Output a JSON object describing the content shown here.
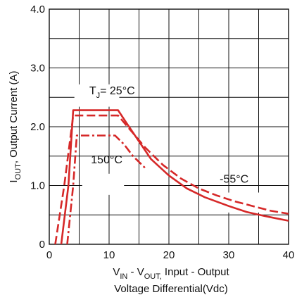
{
  "chart_data": {
    "type": "line",
    "title": "",
    "xlabel_lines": [
      "V_IN - V_OUT, Input - Output",
      "Voltage Differential(Vdc)"
    ],
    "xlabel_parts": {
      "v": "V",
      "in_sub": "IN",
      "dash": " - V",
      "out_sub": "OUT,",
      "rest": " Input - Output"
    },
    "xlabel_line2": "Voltage Differential(Vdc)",
    "ylabel_parts": {
      "i": "I",
      "out_sub": "OUT",
      "rest": ", Output Current (A)"
    },
    "xlim": [
      0,
      40
    ],
    "ylim": [
      0,
      4.0
    ],
    "x_ticks": [
      {
        "v": 0,
        "label": "0"
      },
      {
        "v": 10,
        "label": "10"
      },
      {
        "v": 20,
        "label": "20"
      },
      {
        "v": 30,
        "label": "30"
      },
      {
        "v": 40,
        "label": "40"
      }
    ],
    "y_ticks": [
      {
        "v": 0,
        "label": "0"
      },
      {
        "v": 1.0,
        "label": "1.0"
      },
      {
        "v": 2.0,
        "label": "2.0"
      },
      {
        "v": 3.0,
        "label": "3.0"
      },
      {
        "v": 4.0,
        "label": "4.0"
      }
    ],
    "grid_step_x": 5,
    "grid_step_y": 0.5,
    "grid": true,
    "color": "#d62828",
    "series": [
      {
        "style": "solid",
        "points": [
          [
            2.0,
            0
          ],
          [
            3.2,
            1.0
          ],
          [
            4.0,
            2.28
          ],
          [
            11.5,
            2.28
          ],
          [
            13,
            2.05
          ],
          [
            15,
            1.75
          ],
          [
            17,
            1.45
          ],
          [
            20,
            1.17
          ],
          [
            23,
            0.95
          ],
          [
            26,
            0.8
          ],
          [
            30,
            0.65
          ],
          [
            33,
            0.55
          ],
          [
            36,
            0.48
          ],
          [
            40,
            0.4
          ]
        ]
      },
      {
        "style": "dashed",
        "points": [
          [
            1.0,
            0
          ],
          [
            2.5,
            1.0
          ],
          [
            4.0,
            2.19
          ],
          [
            11.5,
            2.19
          ],
          [
            13.5,
            1.95
          ],
          [
            16,
            1.65
          ],
          [
            19,
            1.35
          ],
          [
            22,
            1.12
          ],
          [
            25,
            0.95
          ],
          [
            28,
            0.83
          ],
          [
            31,
            0.73
          ],
          [
            34,
            0.65
          ],
          [
            37,
            0.57
          ],
          [
            40,
            0.52
          ]
        ]
      },
      {
        "style": "dashdot",
        "points": [
          [
            3.0,
            0
          ],
          [
            4.0,
            1.0
          ],
          [
            4.6,
            1.85
          ],
          [
            11.0,
            1.85
          ],
          [
            12.5,
            1.7
          ],
          [
            14,
            1.5
          ],
          [
            16,
            1.3
          ]
        ]
      }
    ],
    "annotations": [
      {
        "t_main": "T",
        "t_sub": "J",
        "t_rest": "= 25°C",
        "x": 10.5,
        "y": 2.55
      },
      {
        "text": "150°C",
        "x": 9.6,
        "y": 1.38
      },
      {
        "text": "-55°C",
        "x": 30.9,
        "y": 1.05
      }
    ]
  }
}
